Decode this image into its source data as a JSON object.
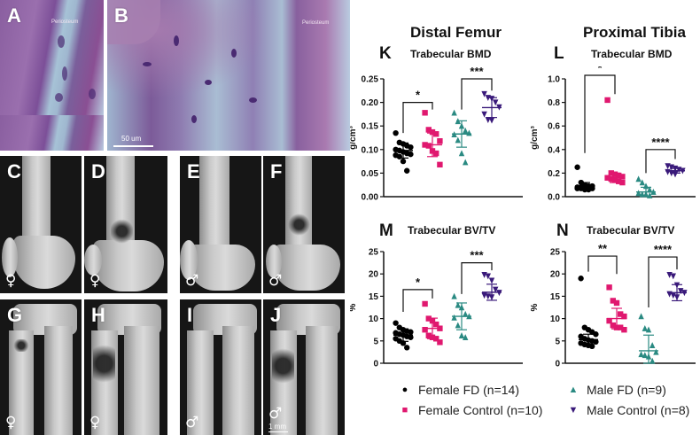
{
  "figure": {
    "image_panels": [
      {
        "letter": "A",
        "type": "histology",
        "label": "Periosteum"
      },
      {
        "letter": "B",
        "type": "histology",
        "label": "Periosteum",
        "scale_bar": "50 um"
      },
      {
        "letter": "C",
        "type": "microCT-femur",
        "sex": "♀"
      },
      {
        "letter": "D",
        "type": "microCT-femur",
        "sex": "♀"
      },
      {
        "letter": "E",
        "type": "microCT-femur",
        "sex": "♂"
      },
      {
        "letter": "F",
        "type": "microCT-femur",
        "sex": "♂"
      },
      {
        "letter": "G",
        "type": "microCT-tibia",
        "sex": "♀"
      },
      {
        "letter": "H",
        "type": "microCT-tibia",
        "sex": "♀"
      },
      {
        "letter": "I",
        "type": "microCT-tibia",
        "sex": "♂"
      },
      {
        "letter": "J",
        "type": "microCT-tibia",
        "sex": "♂",
        "scale_bar": "1 mm"
      }
    ],
    "column_titles": [
      "Distal Femur",
      "Proximal Tibia"
    ]
  },
  "legend": [
    {
      "symbol": "●",
      "label": "Female FD (n=14)",
      "color": "#000000"
    },
    {
      "symbol": "▲",
      "label": "Male FD (n=9)",
      "color": "#2a8a82"
    },
    {
      "symbol": "■",
      "label": "Female Control (n=10)",
      "color": "#e0186f"
    },
    {
      "symbol": "▼",
      "label": "Male Control (n=8)",
      "color": "#3a1a7a"
    }
  ],
  "colors": {
    "female_fd": "#000000",
    "female_control": "#e0186f",
    "male_fd": "#2a8a82",
    "male_control": "#3a1a7a"
  },
  "chart_data": [
    {
      "panel": "K",
      "type": "scatter",
      "title": "Trabecular BMD",
      "column": "Distal Femur",
      "ylabel": "g/cm³",
      "ylim": [
        0,
        0.25
      ],
      "yticks": [
        "0.00",
        "0.05",
        "0.10",
        "0.15",
        "0.20",
        "0.25"
      ],
      "categories": [
        "Female FD",
        "Female Control",
        "Male FD",
        "Male Control"
      ],
      "series": [
        {
          "name": "Female FD",
          "values": [
            0.135,
            0.115,
            0.112,
            0.108,
            0.105,
            0.1,
            0.098,
            0.095,
            0.092,
            0.09,
            0.088,
            0.085,
            0.075,
            0.055
          ],
          "mean": 0.098,
          "sd": 0.016
        },
        {
          "name": "Female Control",
          "values": [
            0.178,
            0.142,
            0.137,
            0.133,
            0.118,
            0.11,
            0.108,
            0.097,
            0.092,
            0.068
          ],
          "mean": 0.11,
          "sd": 0.025
        },
        {
          "name": "Male FD",
          "values": [
            0.178,
            0.16,
            0.15,
            0.14,
            0.135,
            0.132,
            0.12,
            0.092,
            0.073
          ],
          "mean": 0.133,
          "sd": 0.028
        },
        {
          "name": "Male Control",
          "values": [
            0.218,
            0.21,
            0.208,
            0.2,
            0.19,
            0.175,
            0.163,
            0.162
          ],
          "mean": 0.189,
          "sd": 0.021
        }
      ],
      "significance": [
        {
          "groups": [
            "Female FD",
            "Female Control"
          ],
          "label": "*"
        },
        {
          "groups": [
            "Male FD",
            "Male Control"
          ],
          "label": "***"
        }
      ]
    },
    {
      "panel": "L",
      "type": "scatter",
      "title": "Trabecular BMD",
      "column": "Proximal Tibia",
      "ylabel": "g/cm³",
      "ylim": [
        0,
        1.0
      ],
      "yticks": [
        "0.0",
        "0.2",
        "0.4",
        "0.6",
        "0.8",
        "1.0"
      ],
      "categories": [
        "Female FD",
        "Female Control",
        "Male FD",
        "Male Control"
      ],
      "series": [
        {
          "name": "Female FD",
          "values": [
            0.25,
            0.12,
            0.1,
            0.09,
            0.09,
            0.08,
            0.08,
            0.08,
            0.07,
            0.07,
            0.07,
            0.07,
            0.06,
            0.06
          ],
          "mean": 0.09,
          "sd": 0.03
        },
        {
          "name": "Female Control",
          "values": [
            0.82,
            0.2,
            0.19,
            0.18,
            0.17,
            0.16,
            0.15,
            0.14,
            0.13,
            0.12
          ],
          "mean": 0.16,
          "sd": 0.04
        },
        {
          "name": "Male FD",
          "values": [
            0.15,
            0.12,
            0.09,
            0.06,
            0.04,
            0.03,
            0.02,
            0.02,
            0.01
          ],
          "mean": 0.04,
          "sd": 0.04
        },
        {
          "name": "Male Control",
          "values": [
            0.26,
            0.25,
            0.24,
            0.23,
            0.22,
            0.21,
            0.2,
            0.19
          ],
          "mean": 0.22,
          "sd": 0.02
        }
      ],
      "significance": [
        {
          "groups": [
            "Female FD",
            "Female Control"
          ],
          "label": "*"
        },
        {
          "groups": [
            "Male FD",
            "Male Control"
          ],
          "label": "****"
        }
      ]
    },
    {
      "panel": "M",
      "type": "scatter",
      "title": "Trabecular BV/TV",
      "column": "Distal Femur",
      "ylabel": "%",
      "ylim": [
        0,
        25
      ],
      "yticks": [
        "0",
        "5",
        "10",
        "15",
        "20",
        "25"
      ],
      "categories": [
        "Female FD",
        "Female Control",
        "Male FD",
        "Male Control"
      ],
      "series": [
        {
          "name": "Female FD",
          "values": [
            9.0,
            8.0,
            7.5,
            7.2,
            7.0,
            6.8,
            6.5,
            6.3,
            6.0,
            5.8,
            5.5,
            5.0,
            4.5,
            3.5
          ],
          "mean": 6.3,
          "sd": 1.4
        },
        {
          "name": "Female Control",
          "values": [
            13.3,
            10.0,
            9.5,
            8.7,
            7.8,
            7.5,
            6.2,
            5.8,
            5.5,
            4.7
          ],
          "mean": 7.8,
          "sd": 2.3
        },
        {
          "name": "Male FD",
          "values": [
            15.0,
            13.0,
            12.5,
            11.0,
            10.5,
            10.2,
            8.5,
            6.2,
            5.8
          ],
          "mean": 10.5,
          "sd": 3.0
        },
        {
          "name": "Male Control",
          "values": [
            19.8,
            19.5,
            18.5,
            16.5,
            15.8,
            15.2,
            15.0,
            14.8
          ],
          "mean": 15.9,
          "sd": 1.8
        }
      ],
      "significance": [
        {
          "groups": [
            "Female FD",
            "Female Control"
          ],
          "label": "*"
        },
        {
          "groups": [
            "Male FD",
            "Male Control"
          ],
          "label": "***"
        }
      ]
    },
    {
      "panel": "N",
      "type": "scatter",
      "title": "Trabecular BV/TV",
      "column": "Proximal Tibia",
      "ylabel": "%",
      "ylim": [
        0,
        25
      ],
      "yticks": [
        "0",
        "5",
        "10",
        "15",
        "20",
        "25"
      ],
      "categories": [
        "Female FD",
        "Female Control",
        "Male FD",
        "Male Control"
      ],
      "series": [
        {
          "name": "Female FD",
          "values": [
            19.0,
            8.0,
            7.5,
            7.0,
            6.5,
            6.0,
            5.5,
            5.2,
            5.0,
            4.8,
            4.5,
            4.2,
            4.0,
            3.8
          ],
          "mean": 5.3,
          "sd": 1.2
        },
        {
          "name": "Female Control",
          "values": [
            17.0,
            14.0,
            13.5,
            11.0,
            10.5,
            9.5,
            8.5,
            8.0,
            8.0,
            7.5
          ],
          "mean": 10.0,
          "sd": 2.3
        },
        {
          "name": "Male FD",
          "values": [
            10.5,
            7.8,
            7.5,
            4.0,
            2.5,
            2.0,
            1.8,
            1.5,
            0.5
          ],
          "mean": 2.8,
          "sd": 3.5
        },
        {
          "name": "Male Control",
          "values": [
            19.8,
            19.5,
            17.5,
            16.2,
            15.8,
            15.5,
            15.2,
            14.8
          ],
          "mean": 15.8,
          "sd": 1.8
        }
      ],
      "significance": [
        {
          "groups": [
            "Female FD",
            "Female Control"
          ],
          "label": "**"
        },
        {
          "groups": [
            "Male FD",
            "Male Control"
          ],
          "label": "****"
        }
      ]
    }
  ]
}
